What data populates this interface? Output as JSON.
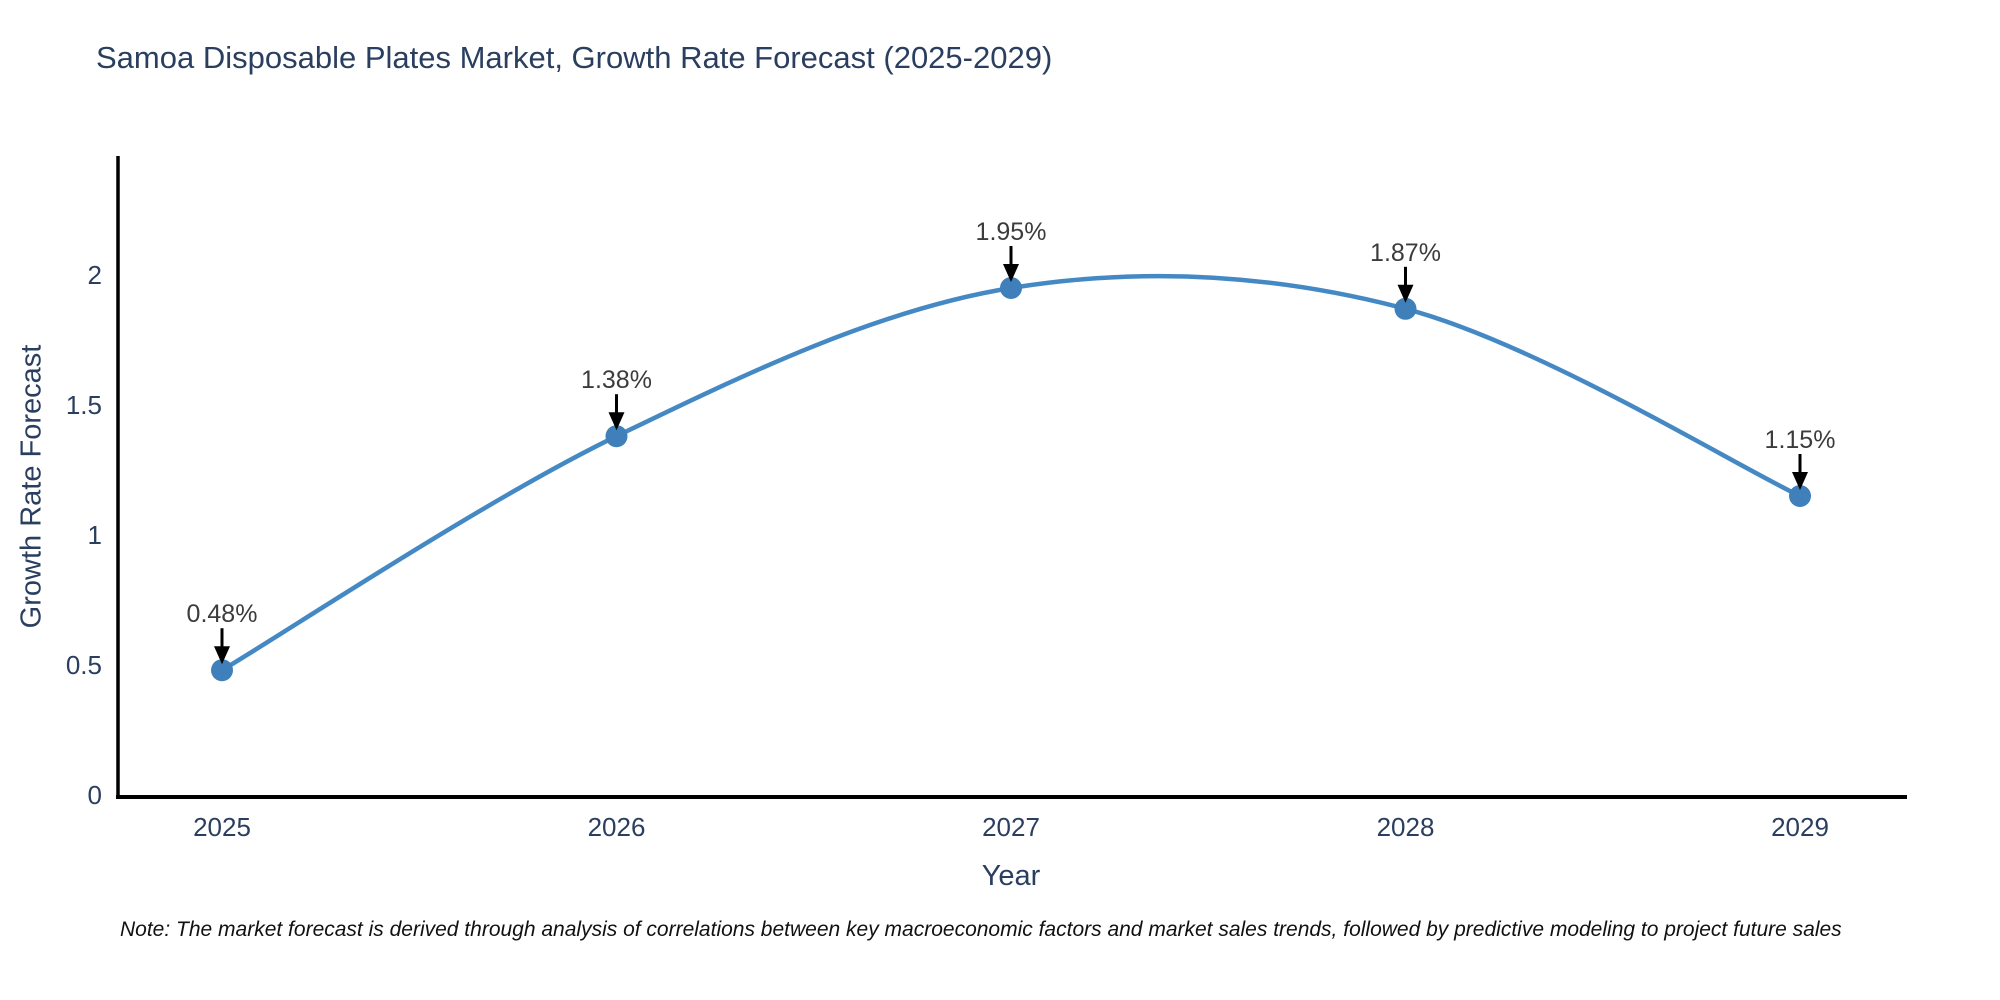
{
  "chart_data": {
    "type": "line",
    "line_shape": "spline",
    "title": "Samoa Disposable Plates Market, Growth Rate Forecast (2025-2029)",
    "xlabel": "Year",
    "ylabel": "Growth Rate Forecast",
    "categories": [
      "2025",
      "2026",
      "2027",
      "2028",
      "2029"
    ],
    "values": [
      0.48,
      1.38,
      1.95,
      1.87,
      1.15
    ],
    "point_labels": [
      "0.48%",
      "1.38%",
      "1.95%",
      "1.87%",
      "1.15%"
    ],
    "yticks": [
      "0",
      "0.5",
      "1",
      "1.5",
      "2"
    ],
    "ytick_values": [
      0,
      0.5,
      1,
      1.5,
      2
    ],
    "ylim": [
      0,
      2.45
    ],
    "grid": false,
    "legend": "none",
    "colors": {
      "line": "#4589c4",
      "marker": "#3f7fba",
      "axis": "#000000",
      "title_text": "#2a3f5f",
      "tick_text": "#2a3f5f",
      "annotation_text": "#3c3c3c",
      "arrow": "#000000",
      "background": "#ffffff"
    },
    "note": "Note: The market forecast is derived through analysis of correlations between key macroeconomic factors and market sales trends, followed by predictive modeling to project future sales"
  }
}
